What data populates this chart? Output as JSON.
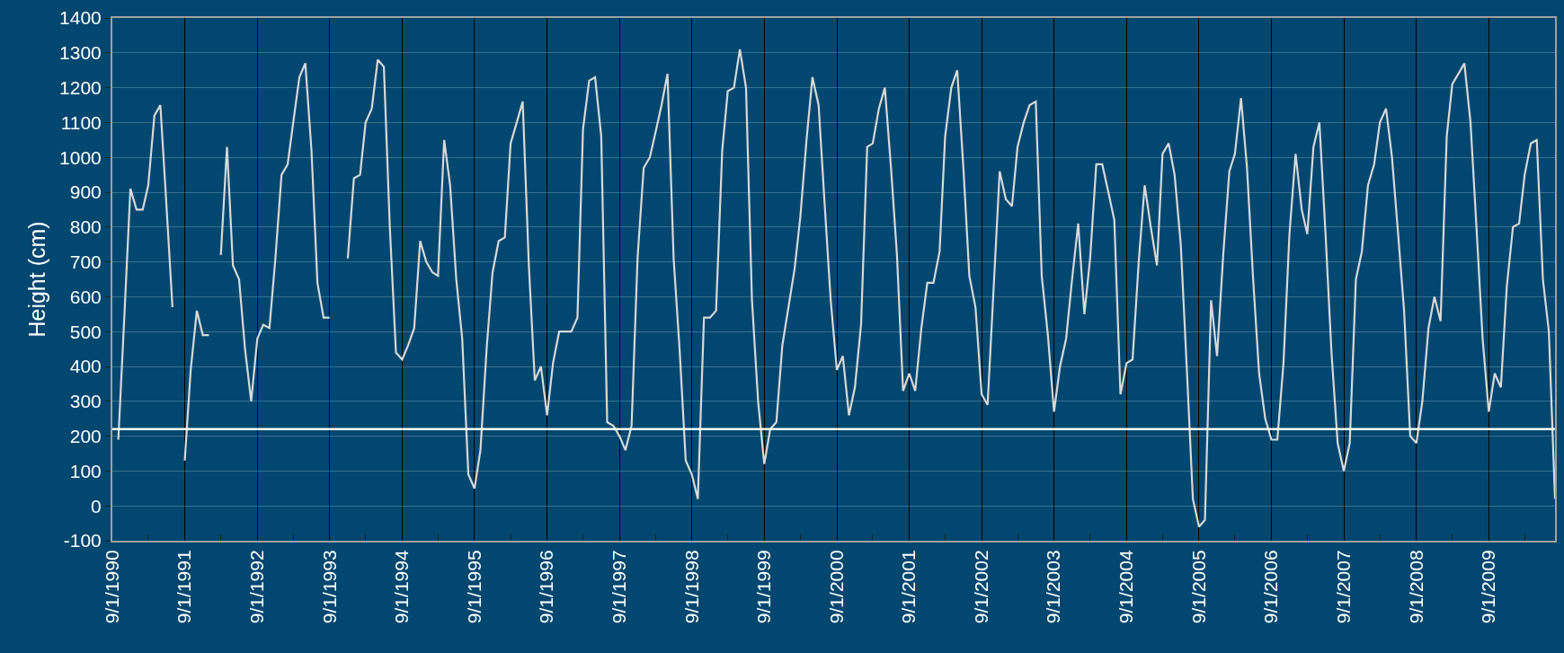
{
  "chart_data": {
    "type": "line",
    "ylabel": "Height (cm)",
    "x": [
      "1990-10",
      "1990-11",
      "1990-12",
      "1991-01",
      "1991-02",
      "1991-03",
      "1991-04",
      "1991-05",
      "1991-06",
      "1991-07",
      "1991-08",
      "1991-09",
      "1991-10",
      "1991-11",
      "1991-12",
      "1992-01",
      "1992-02",
      "1992-03",
      "1992-04",
      "1992-05",
      "1992-06",
      "1992-07",
      "1992-08",
      "1992-09",
      "1992-10",
      "1992-11",
      "1992-12",
      "1993-01",
      "1993-02",
      "1993-03",
      "1993-04",
      "1993-05",
      "1993-06",
      "1993-07",
      "1993-08",
      "1993-09",
      "1993-10",
      "1993-11",
      "1993-12",
      "1994-01",
      "1994-02",
      "1994-03",
      "1994-04",
      "1994-05",
      "1994-06",
      "1994-07",
      "1994-08",
      "1994-09",
      "1994-10",
      "1994-11",
      "1994-12",
      "1995-01",
      "1995-02",
      "1995-03",
      "1995-04",
      "1995-05",
      "1995-06",
      "1995-07",
      "1995-08",
      "1995-09",
      "1995-10",
      "1995-11",
      "1995-12",
      "1996-01",
      "1996-02",
      "1996-03",
      "1996-04",
      "1996-05",
      "1996-06",
      "1996-07",
      "1996-08",
      "1996-09",
      "1996-10",
      "1996-11",
      "1996-12",
      "1997-01",
      "1997-02",
      "1997-03",
      "1997-04",
      "1997-05",
      "1997-06",
      "1997-07",
      "1997-08",
      "1997-09",
      "1997-10",
      "1997-11",
      "1997-12",
      "1998-01",
      "1998-02",
      "1998-03",
      "1998-04",
      "1998-05",
      "1998-06",
      "1998-07",
      "1998-08",
      "1998-09",
      "1998-10",
      "1998-11",
      "1998-12",
      "1999-01",
      "1999-02",
      "1999-03",
      "1999-04",
      "1999-05",
      "1999-06",
      "1999-07",
      "1999-08",
      "1999-09",
      "1999-10",
      "1999-11",
      "1999-12",
      "2000-01",
      "2000-02",
      "2000-03",
      "2000-04",
      "2000-05",
      "2000-06",
      "2000-07",
      "2000-08",
      "2000-09",
      "2000-10",
      "2000-11",
      "2000-12",
      "2001-01",
      "2001-02",
      "2001-03",
      "2001-04",
      "2001-05",
      "2001-06",
      "2001-07",
      "2001-08",
      "2001-09",
      "2001-10",
      "2001-11",
      "2001-12",
      "2002-01",
      "2002-02",
      "2002-03",
      "2002-04",
      "2002-05",
      "2002-06",
      "2002-07",
      "2002-08",
      "2002-09",
      "2002-10",
      "2002-11",
      "2002-12",
      "2003-01",
      "2003-02",
      "2003-03",
      "2003-04",
      "2003-05",
      "2003-06",
      "2003-07",
      "2003-08",
      "2003-09",
      "2003-10",
      "2003-11",
      "2003-12",
      "2004-01",
      "2004-02",
      "2004-03",
      "2004-04",
      "2004-05",
      "2004-06",
      "2004-07",
      "2004-08",
      "2004-09",
      "2004-10",
      "2004-11",
      "2004-12",
      "2005-01",
      "2005-02",
      "2005-03",
      "2005-04",
      "2005-05",
      "2005-06",
      "2005-07",
      "2005-08",
      "2005-09",
      "2005-10",
      "2005-11",
      "2005-12",
      "2006-01",
      "2006-02",
      "2006-03",
      "2006-04",
      "2006-05",
      "2006-06",
      "2006-07",
      "2006-08",
      "2006-09",
      "2006-10",
      "2006-11",
      "2006-12",
      "2007-01",
      "2007-02",
      "2007-03",
      "2007-04",
      "2007-05",
      "2007-06",
      "2007-07",
      "2007-08",
      "2007-09",
      "2007-10",
      "2007-11",
      "2007-12",
      "2008-01",
      "2008-02",
      "2008-03",
      "2008-04",
      "2008-05",
      "2008-06",
      "2008-07",
      "2008-08",
      "2008-09",
      "2008-10",
      "2008-11",
      "2008-12",
      "2009-01",
      "2009-02",
      "2009-03",
      "2009-04",
      "2009-05",
      "2009-06",
      "2009-07",
      "2009-08",
      "2009-09",
      "2009-10",
      "2009-11",
      "2009-12",
      "2010-01",
      "2010-02",
      "2010-03",
      "2010-04",
      "2010-05",
      "2010-06",
      "2010-07",
      "2010-08"
    ],
    "series": [
      {
        "color": "#d9d9d9",
        "values": [
          190,
          550,
          910,
          850,
          850,
          920,
          1120,
          1150,
          860,
          570,
          null,
          130,
          390,
          560,
          490,
          490,
          null,
          720,
          1030,
          690,
          650,
          450,
          300,
          480,
          520,
          510,
          710,
          950,
          980,
          1100,
          1230,
          1270,
          1020,
          640,
          540,
          540,
          null,
          null,
          710,
          940,
          950,
          1100,
          1140,
          1280,
          1260,
          800,
          440,
          420,
          460,
          510,
          760,
          700,
          670,
          660,
          1050,
          920,
          650,
          480,
          90,
          50,
          160,
          450,
          670,
          760,
          770,
          1040,
          1100,
          1160,
          690,
          360,
          400,
          260,
          410,
          500,
          500,
          500,
          540,
          1080,
          1220,
          1230,
          1060,
          240,
          230,
          200,
          160,
          230,
          710,
          970,
          1000,
          1070,
          1150,
          1240,
          710,
          450,
          130,
          90,
          20,
          540,
          540,
          560,
          1020,
          1190,
          1200,
          1310,
          1200,
          590,
          300,
          120,
          220,
          240,
          460,
          570,
          680,
          830,
          1050,
          1230,
          1150,
          870,
          590,
          390,
          430,
          260,
          340,
          520,
          1030,
          1040,
          1140,
          1200,
          970,
          720,
          330,
          380,
          330,
          510,
          640,
          640,
          730,
          1060,
          1200,
          1250,
          970,
          660,
          570,
          320,
          290,
          630,
          960,
          880,
          860,
          1030,
          1100,
          1150,
          1160,
          660,
          490,
          270,
          400,
          480,
          650,
          810,
          550,
          710,
          980,
          980,
          900,
          820,
          320,
          410,
          420,
          700,
          920,
          800,
          690,
          1010,
          1040,
          950,
          750,
          400,
          20,
          -60,
          -40,
          590,
          430,
          720,
          960,
          1010,
          1170,
          970,
          650,
          380,
          250,
          190,
          190,
          410,
          780,
          1010,
          850,
          780,
          1030,
          1100,
          780,
          440,
          180,
          100,
          180,
          650,
          730,
          920,
          980,
          1100,
          1140,
          1000,
          780,
          560,
          200,
          180,
          300,
          510,
          600,
          530,
          1060,
          1210,
          1240,
          1270,
          1100,
          800,
          480,
          270,
          380,
          340,
          630,
          800,
          810,
          950,
          1040,
          1050,
          650,
          500,
          20
        ]
      }
    ],
    "xlim": [
      "1990-09-01",
      "2010-08-01"
    ],
    "xticks": [
      {
        "value": "1990-09-01",
        "label": "9/1/1990"
      },
      {
        "value": "1991-03-01",
        "label": null
      },
      {
        "value": "1991-09-01",
        "label": "9/1/1991"
      },
      {
        "value": "1992-03-01",
        "label": null
      },
      {
        "value": "1992-09-01",
        "label": "9/1/1992"
      },
      {
        "value": "1993-03-01",
        "label": null
      },
      {
        "value": "1993-09-01",
        "label": "9/1/1993"
      },
      {
        "value": "1994-03-01",
        "label": null
      },
      {
        "value": "1994-09-01",
        "label": "9/1/1994"
      },
      {
        "value": "1995-03-01",
        "label": null
      },
      {
        "value": "1995-09-01",
        "label": "9/1/1995"
      },
      {
        "value": "1996-03-01",
        "label": null
      },
      {
        "value": "1996-09-01",
        "label": "9/1/1996"
      },
      {
        "value": "1997-03-01",
        "label": null
      },
      {
        "value": "1997-09-01",
        "label": "9/1/1997"
      },
      {
        "value": "1998-03-01",
        "label": null
      },
      {
        "value": "1998-09-01",
        "label": "9/1/1998"
      },
      {
        "value": "1999-03-01",
        "label": null
      },
      {
        "value": "1999-09-01",
        "label": "9/1/1999"
      },
      {
        "value": "2000-03-01",
        "label": null
      },
      {
        "value": "2000-09-01",
        "label": "9/1/2000"
      },
      {
        "value": "2001-03-01",
        "label": null
      },
      {
        "value": "2001-09-01",
        "label": "9/1/2001"
      },
      {
        "value": "2002-03-01",
        "label": null
      },
      {
        "value": "2002-09-01",
        "label": "9/1/2002"
      },
      {
        "value": "2003-03-01",
        "label": null
      },
      {
        "value": "2003-09-01",
        "label": "9/1/2003"
      },
      {
        "value": "2004-03-01",
        "label": null
      },
      {
        "value": "2004-09-01",
        "label": "9/1/2004"
      },
      {
        "value": "2005-03-01",
        "label": null
      },
      {
        "value": "2005-09-01",
        "label": "9/1/2005"
      },
      {
        "value": "2006-03-01",
        "label": null
      },
      {
        "value": "2006-09-01",
        "label": "9/1/2006"
      },
      {
        "value": "2007-03-01",
        "label": null
      },
      {
        "value": "2007-09-01",
        "label": "9/1/2007"
      },
      {
        "value": "2008-03-01",
        "label": null
      },
      {
        "value": "2008-09-01",
        "label": "9/1/2008"
      },
      {
        "value": "2009-03-01",
        "label": null
      },
      {
        "value": "2009-09-01",
        "label": "9/1/2009"
      },
      {
        "value": "2010-03-01",
        "label": null
      }
    ],
    "ylim": [
      -100,
      1400
    ],
    "yticks": [
      -100,
      0,
      100,
      200,
      300,
      400,
      500,
      600,
      700,
      800,
      900,
      1000,
      1100,
      1200,
      1300,
      1400
    ],
    "ref_lines": [
      {
        "axis": "y",
        "value": 220,
        "color": "#fffff0"
      }
    ],
    "grid": true,
    "marker": "none",
    "line_style": "solid"
  }
}
